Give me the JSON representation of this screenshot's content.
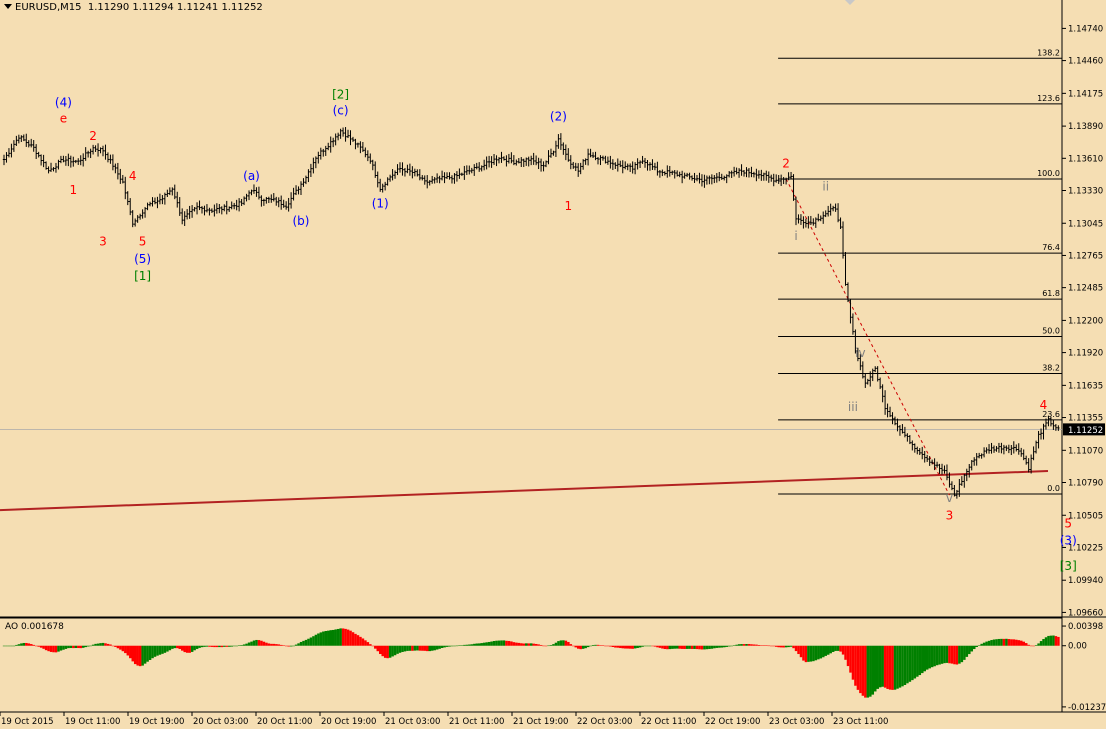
{
  "header": {
    "symbol_timeframe": "EURUSD,M15",
    "ohlc": "1.11290 1.11294 1.11241 1.11252"
  },
  "indicator_header": {
    "label": "AO 0.001678"
  },
  "colors": {
    "background": "#F5DEB3",
    "candles": "#000000",
    "fib_lines": "#000000",
    "trendline": "#B22222",
    "wave_red": "#FF0000",
    "wave_blue": "#0000FF",
    "wave_green": "#008000",
    "wave_gray": "#808080",
    "ao_up": "#008000",
    "ao_down": "#FF0000",
    "current_price_tag": "#000000"
  },
  "chart_data": [
    {
      "type": "candlestick",
      "title": "EURUSD,M15",
      "y_ticks": [
        "1.14740",
        "1.14460",
        "1.14175",
        "1.13890",
        "1.13610",
        "1.13330",
        "1.13045",
        "1.12765",
        "1.12485",
        "1.12200",
        "1.11920",
        "1.11635",
        "1.11355",
        "1.11070",
        "1.10790",
        "1.10505",
        "1.10225",
        "1.09940",
        "1.09660"
      ],
      "x_ticks": [
        "19 Oct 2015",
        "19 Oct 11:00",
        "19 Oct 19:00",
        "20 Oct 03:00",
        "20 Oct 11:00",
        "20 Oct 19:00",
        "21 Oct 03:00",
        "21 Oct 11:00",
        "21 Oct 19:00",
        "22 Oct 03:00",
        "22 Oct 11:00",
        "22 Oct 19:00",
        "23 Oct 03:00",
        "23 Oct 11:00"
      ],
      "ylim": [
        1.0962,
        1.149
      ],
      "current_price": "1.11252",
      "price_path": [
        [
          0,
          1.136
        ],
        [
          6,
          1.138
        ],
        [
          12,
          1.137
        ],
        [
          18,
          1.135
        ],
        [
          24,
          1.136
        ],
        [
          30,
          1.1358
        ],
        [
          36,
          1.137
        ],
        [
          40,
          1.1368
        ],
        [
          44,
          1.1355
        ],
        [
          48,
          1.134
        ],
        [
          52,
          1.1305
        ],
        [
          58,
          1.132
        ],
        [
          64,
          1.1326
        ],
        [
          68,
          1.1335
        ],
        [
          72,
          1.1308
        ],
        [
          78,
          1.1318
        ],
        [
          84,
          1.1316
        ],
        [
          90,
          1.1318
        ],
        [
          96,
          1.1322
        ],
        [
          100,
          1.1334
        ],
        [
          104,
          1.1326
        ],
        [
          110,
          1.1324
        ],
        [
          114,
          1.132
        ],
        [
          118,
          1.1332
        ],
        [
          122,
          1.1345
        ],
        [
          126,
          1.1362
        ],
        [
          132,
          1.1375
        ],
        [
          136,
          1.1385
        ],
        [
          140,
          1.1378
        ],
        [
          144,
          1.137
        ],
        [
          148,
          1.136
        ],
        [
          152,
          1.1335
        ],
        [
          156,
          1.1345
        ],
        [
          160,
          1.1352
        ],
        [
          166,
          1.1348
        ],
        [
          170,
          1.134
        ],
        [
          176,
          1.1343
        ],
        [
          182,
          1.1345
        ],
        [
          188,
          1.135
        ],
        [
          194,
          1.1355
        ],
        [
          200,
          1.1362
        ],
        [
          206,
          1.1358
        ],
        [
          212,
          1.136
        ],
        [
          218,
          1.1355
        ],
        [
          222,
          1.1368
        ],
        [
          224,
          1.1378
        ],
        [
          228,
          1.136
        ],
        [
          232,
          1.135
        ],
        [
          236,
          1.1365
        ],
        [
          242,
          1.136
        ],
        [
          248,
          1.1355
        ],
        [
          254,
          1.1352
        ],
        [
          258,
          1.136
        ],
        [
          264,
          1.135
        ],
        [
          270,
          1.1348
        ],
        [
          276,
          1.1345
        ],
        [
          282,
          1.1342
        ],
        [
          290,
          1.1345
        ],
        [
          298,
          1.135
        ],
        [
          304,
          1.1348
        ],
        [
          312,
          1.1342
        ],
        [
          318,
          1.1345
        ],
        [
          320,
          1.1308
        ],
        [
          326,
          1.1305
        ],
        [
          332,
          1.1313
        ],
        [
          336,
          1.1318
        ],
        [
          338,
          1.13
        ],
        [
          340,
          1.125
        ],
        [
          344,
          1.1195
        ],
        [
          348,
          1.1165
        ],
        [
          352,
          1.1178
        ],
        [
          356,
          1.1145
        ],
        [
          362,
          1.1125
        ],
        [
          368,
          1.111
        ],
        [
          374,
          1.1098
        ],
        [
          380,
          1.1088
        ],
        [
          384,
          1.1068
        ],
        [
          388,
          1.1085
        ],
        [
          392,
          1.11
        ],
        [
          398,
          1.1108
        ],
        [
          404,
          1.111
        ],
        [
          410,
          1.1108
        ],
        [
          414,
          1.1092
        ],
        [
          418,
          1.112
        ],
        [
          422,
          1.1133
        ],
        [
          426,
          1.1125
        ]
      ],
      "fibonacci_levels": [
        {
          "label": "138.2",
          "price": 1.1448
        },
        {
          "label": "123.6",
          "price": 1.14083
        },
        {
          "label": "100.0",
          "price": 1.1343
        },
        {
          "label": "76.4",
          "price": 1.12785
        },
        {
          "label": "61.8",
          "price": 1.12385
        },
        {
          "label": "50.0",
          "price": 1.1206
        },
        {
          "label": "38.2",
          "price": 1.11738
        },
        {
          "label": "23.6",
          "price": 1.11335
        },
        {
          "label": "0.0",
          "price": 1.1069
        }
      ],
      "wave_labels": [
        {
          "text": "(4)",
          "color": "blue",
          "bar": 24,
          "price": 1.1406
        },
        {
          "text": "e",
          "color": "red",
          "bar": 24,
          "price": 1.1392
        },
        {
          "text": "2",
          "color": "red",
          "bar": 36,
          "price": 1.1377
        },
        {
          "text": "1",
          "color": "red",
          "bar": 28,
          "price": 1.133
        },
        {
          "text": "4",
          "color": "red",
          "bar": 52,
          "price": 1.1342
        },
        {
          "text": "3",
          "color": "red",
          "bar": 40,
          "price": 1.1285
        },
        {
          "text": "5",
          "color": "red",
          "bar": 56,
          "price": 1.1285
        },
        {
          "text": "(5)",
          "color": "blue",
          "bar": 56,
          "price": 1.127
        },
        {
          "text": "[1]",
          "color": "green",
          "bar": 56,
          "price": 1.1255
        },
        {
          "text": "(a)",
          "color": "blue",
          "bar": 100,
          "price": 1.1342
        },
        {
          "text": "(b)",
          "color": "blue",
          "bar": 120,
          "price": 1.1303
        },
        {
          "text": "[2]",
          "color": "green",
          "bar": 136,
          "price": 1.1413
        },
        {
          "text": "(c)",
          "color": "blue",
          "bar": 136,
          "price": 1.1399
        },
        {
          "text": "(1)",
          "color": "blue",
          "bar": 152,
          "price": 1.1318
        },
        {
          "text": "(2)",
          "color": "blue",
          "bar": 224,
          "price": 1.1394
        },
        {
          "text": "1",
          "color": "red",
          "bar": 228,
          "price": 1.1316
        },
        {
          "text": "2",
          "color": "red",
          "bar": 316,
          "price": 1.1353
        },
        {
          "text": "ii",
          "color": "gray",
          "bar": 332,
          "price": 1.1333
        },
        {
          "text": "i",
          "color": "gray",
          "bar": 320,
          "price": 1.129
        },
        {
          "text": "iv",
          "color": "gray",
          "bar": 346,
          "price": 1.1188
        },
        {
          "text": "iii",
          "color": "gray",
          "bar": 343,
          "price": 1.1141
        },
        {
          "text": "v",
          "color": "gray",
          "bar": 382,
          "price": 1.1062
        },
        {
          "text": "3",
          "color": "red",
          "bar": 382,
          "price": 1.1047
        },
        {
          "text": "4",
          "color": "red",
          "bar": 420,
          "price": 1.1143
        },
        {
          "text": "5",
          "color": "red",
          "bar": 430,
          "price": 1.104
        },
        {
          "text": "(3)",
          "color": "blue",
          "bar": 430,
          "price": 1.1025
        },
        {
          "text": "[3]",
          "color": "green",
          "bar": 430,
          "price": 1.1003
        }
      ],
      "trendline": {
        "start": [
          0,
          1.1055
        ],
        "end": [
          520,
          1.1075
        ]
      },
      "dashed_line": {
        "start": [
          316,
          1.1343
        ],
        "end": [
          382,
          1.1068
        ]
      }
    },
    {
      "type": "bar",
      "title": "AO 0.001678",
      "y_ticks": [
        "0.00398",
        "0.00",
        "-0.012372"
      ],
      "ylim": [
        -0.013,
        0.0048
      ],
      "values": []
    }
  ]
}
